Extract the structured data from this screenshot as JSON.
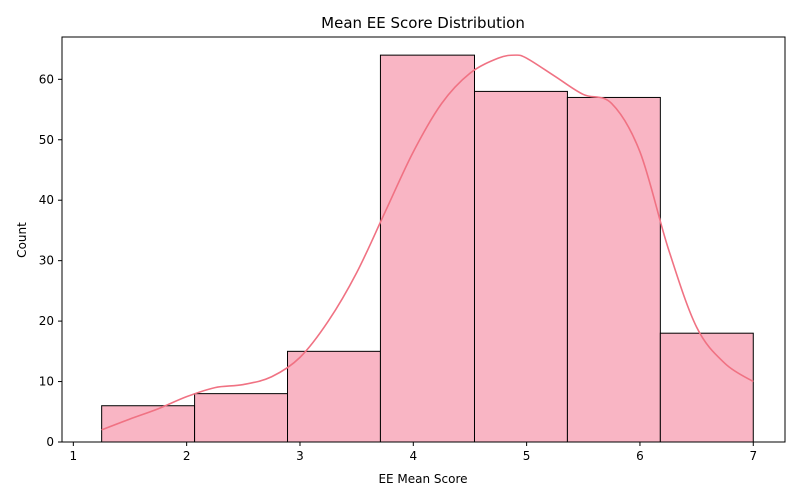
{
  "chart_data": {
    "type": "bar",
    "title": "Mean EE Score Distribution",
    "xlabel": "EE Mean Score",
    "ylabel": "Count",
    "xlim": [
      0.9,
      7.28
    ],
    "ylim": [
      0,
      67
    ],
    "xticks": [
      1,
      2,
      3,
      4,
      5,
      6,
      7
    ],
    "yticks": [
      0,
      10,
      20,
      30,
      40,
      50,
      60
    ],
    "bins": [
      {
        "x0": 1.25,
        "x1": 2.07,
        "count": 6
      },
      {
        "x0": 2.07,
        "x1": 2.89,
        "count": 8
      },
      {
        "x0": 2.89,
        "x1": 3.71,
        "count": 15
      },
      {
        "x0": 3.71,
        "x1": 4.54,
        "count": 64
      },
      {
        "x0": 4.54,
        "x1": 5.36,
        "count": 58
      },
      {
        "x0": 5.36,
        "x1": 6.18,
        "count": 57
      },
      {
        "x0": 6.18,
        "x1": 7.0,
        "count": 18
      }
    ],
    "kde": {
      "x": [
        1.25,
        1.5,
        1.75,
        2.0,
        2.25,
        2.5,
        2.75,
        3.0,
        3.25,
        3.5,
        3.75,
        4.0,
        4.25,
        4.5,
        4.75,
        4.9,
        5.0,
        5.25,
        5.5,
        5.75,
        6.0,
        6.25,
        6.5,
        6.75,
        7.0
      ],
      "y": [
        2,
        3.8,
        5.5,
        7.5,
        9,
        9.5,
        10.8,
        14,
        20,
        28,
        38,
        48,
        56,
        61,
        63.5,
        64,
        63.5,
        60.5,
        57.5,
        56,
        48,
        32,
        19,
        13,
        10
      ]
    },
    "grid": false,
    "legend": "none",
    "colors": {
      "bar_fill": "#f9b5c4",
      "bar_edge": "#000000",
      "kde_line": "#f07283"
    }
  }
}
